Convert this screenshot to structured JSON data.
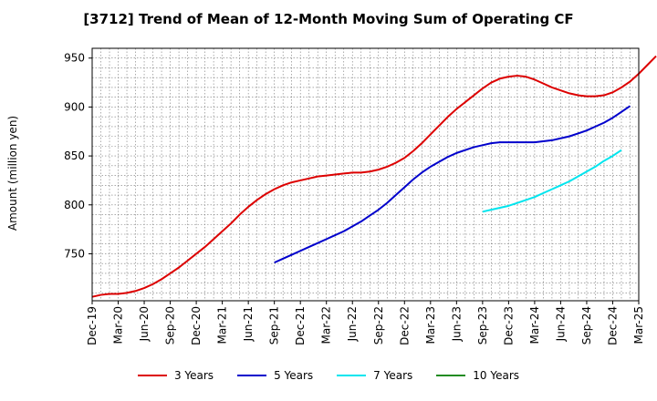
{
  "chart_data": {
    "type": "line",
    "title": "[3712]  Trend of Mean of 12-Month Moving Sum of Operating CF",
    "xlabel": "",
    "ylabel": "Amount (million yen)",
    "ylim": [
      702,
      960
    ],
    "yticks": [
      750,
      800,
      850,
      900,
      950
    ],
    "grid": true,
    "legend_position": "bottom",
    "x_tick_labels": [
      "Dec-19",
      "Mar-20",
      "Jun-20",
      "Sep-20",
      "Dec-20",
      "Mar-21",
      "Jun-21",
      "Sep-21",
      "Dec-21",
      "Mar-22",
      "Jun-22",
      "Sep-22",
      "Dec-22",
      "Mar-23",
      "Jun-23",
      "Sep-23",
      "Dec-23",
      "Mar-24",
      "Jun-24",
      "Sep-24",
      "Dec-24",
      "Mar-25"
    ],
    "x_month_span": 63,
    "series": [
      {
        "name": "3 Years",
        "color": "#dd0000",
        "start_month": 0,
        "values": [
          706,
          708,
          709,
          709,
          710,
          712,
          715,
          719,
          724,
          730,
          736,
          743,
          750,
          757,
          765,
          773,
          781,
          790,
          798,
          805,
          811,
          816,
          820,
          823,
          825,
          827,
          829,
          830,
          831,
          832,
          833,
          833,
          834,
          836,
          839,
          843,
          848,
          855,
          863,
          872,
          881,
          890,
          898,
          905,
          912,
          919,
          925,
          929,
          931,
          932,
          931,
          928,
          924,
          920,
          917,
          914,
          912,
          911,
          911,
          912,
          915,
          920,
          926,
          934,
          943,
          952
        ]
      },
      {
        "name": "5 Years",
        "color": "#0000cc",
        "start_month": 21,
        "values": [
          741,
          745,
          749,
          753,
          757,
          761,
          765,
          769,
          773,
          778,
          783,
          789,
          795,
          802,
          810,
          818,
          826,
          833,
          839,
          844,
          849,
          853,
          856,
          859,
          861,
          863,
          864,
          864,
          864,
          864,
          864,
          865,
          866,
          868,
          870,
          873,
          876,
          880,
          884,
          889,
          895,
          901
        ]
      },
      {
        "name": "7 Years",
        "color": "#00e5ee",
        "start_month": 45,
        "values": [
          793,
          795,
          797,
          799,
          802,
          805,
          808,
          812,
          816,
          820,
          824,
          829,
          834,
          839,
          845,
          850,
          856
        ]
      },
      {
        "name": "10 Years",
        "color": "#228b22",
        "start_month": 0,
        "values": []
      }
    ]
  }
}
